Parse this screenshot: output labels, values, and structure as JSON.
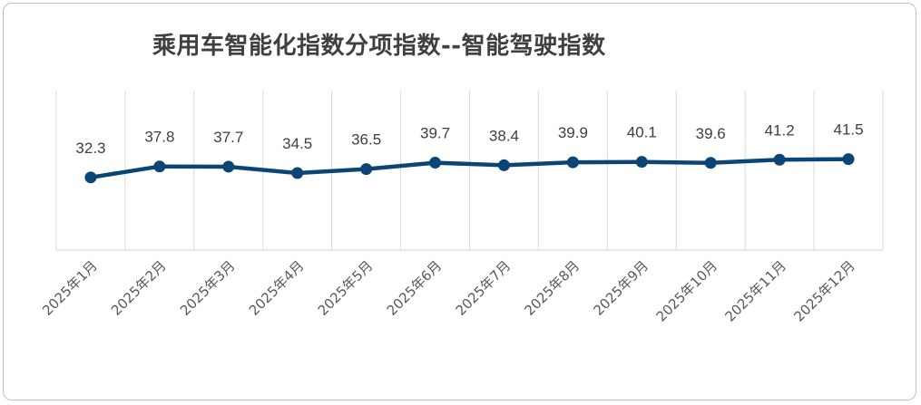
{
  "chart_data": {
    "type": "line",
    "title": "乘用车智能化指数分项指数--智能驾驶指数",
    "categories": [
      "2025年1月",
      "2025年2月",
      "2025年3月",
      "2025年4月",
      "2025年5月",
      "2025年6月",
      "2025年7月",
      "2025年8月",
      "2025年9月",
      "2025年10月",
      "2025年11月",
      "2025年12月"
    ],
    "series": [
      {
        "values": [
          32.3,
          37.8,
          37.7,
          34.5,
          36.5,
          39.7,
          38.4,
          39.9,
          40.1,
          39.6,
          41.2,
          41.5
        ]
      }
    ],
    "data_labels": true,
    "grid": "vertical",
    "legend": "none",
    "line_color": "#0a4576"
  }
}
